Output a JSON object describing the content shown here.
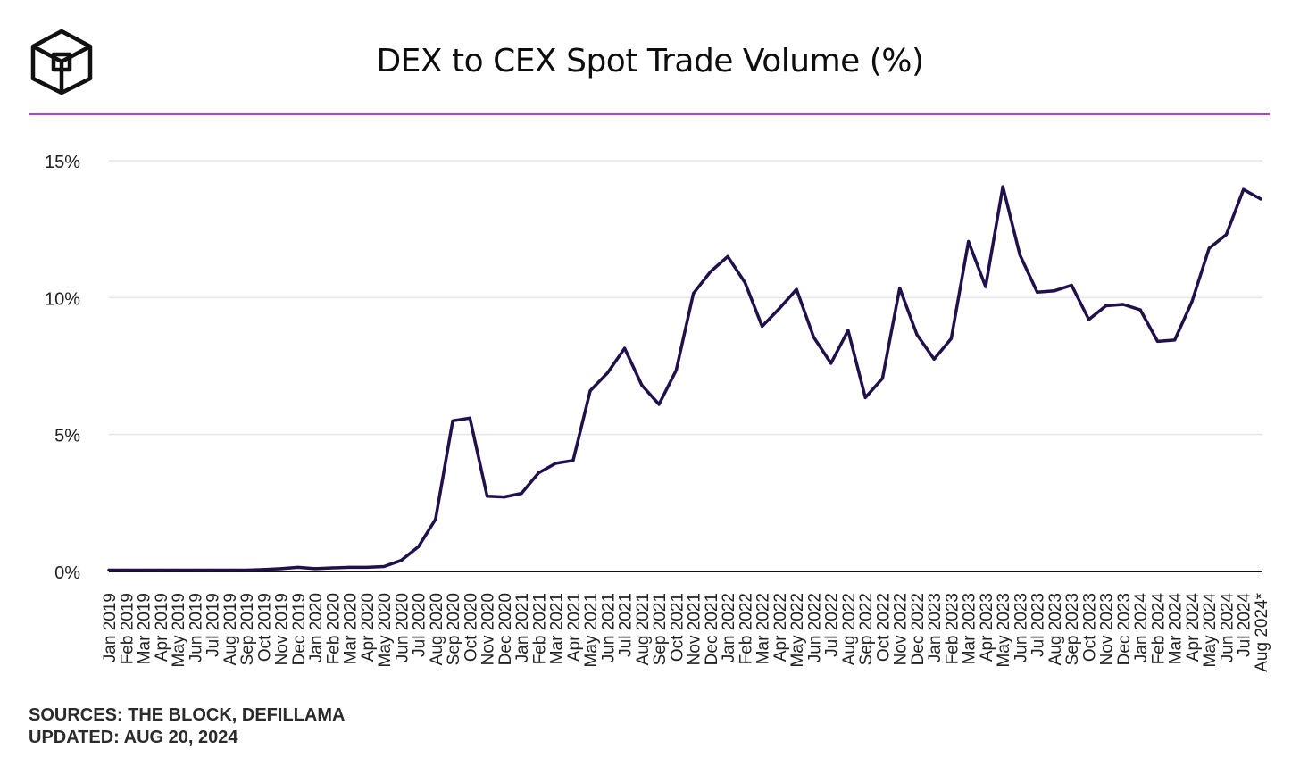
{
  "logo": {
    "icon": "the-block-cube-logo-icon"
  },
  "accent_color": "#b23ee0",
  "line_color": "#22104a",
  "chart_data": {
    "type": "line",
    "title": "DEX to CEX Spot Trade Volume (%)",
    "xlabel": "",
    "ylabel": "",
    "ylim": [
      0,
      15
    ],
    "y_ticks": [
      "0%",
      "5%",
      "10%",
      "15%"
    ],
    "y_tick_values": [
      0,
      5,
      10,
      15
    ],
    "grid": true,
    "legend": "none",
    "categories": [
      "Jan 2019",
      "Feb 2019",
      "Mar 2019",
      "Apr 2019",
      "May 2019",
      "Jun 2019",
      "Jul 2019",
      "Aug 2019",
      "Sep 2019",
      "Oct 2019",
      "Nov 2019",
      "Dec 2019",
      "Jan 2020",
      "Feb 2020",
      "Mar 2020",
      "Apr 2020",
      "May 2020",
      "Jun 2020",
      "Jul 2020",
      "Aug 2020",
      "Sep 2020",
      "Oct 2020",
      "Nov 2020",
      "Dec 2020",
      "Jan 2021",
      "Feb 2021",
      "Mar 2021",
      "Apr 2021",
      "May 2021",
      "Jun 2021",
      "Jul 2021",
      "Aug 2021",
      "Sep 2021",
      "Oct 2021",
      "Nov 2021",
      "Dec 2021",
      "Jan 2022",
      "Feb 2022",
      "Mar 2022",
      "Apr 2022",
      "May 2022",
      "Jun 2022",
      "Jul 2022",
      "Aug 2022",
      "Sep 2022",
      "Oct 2022",
      "Nov 2022",
      "Dec 2022",
      "Jan 2023",
      "Feb 2023",
      "Mar 2023",
      "Apr 2023",
      "May 2023",
      "Jun 2023",
      "Jul 2023",
      "Aug 2023",
      "Sep 2023",
      "Oct 2023",
      "Nov 2023",
      "Dec 2023",
      "Jan 2024",
      "Feb 2024",
      "Mar 2024",
      "Apr 2024",
      "May 2024",
      "Jun 2024",
      "Jul 2024",
      "Aug 2024*"
    ],
    "series": [
      {
        "values": [
          0.05,
          0.05,
          0.05,
          0.05,
          0.05,
          0.05,
          0.05,
          0.05,
          0.05,
          0.07,
          0.1,
          0.15,
          0.1,
          0.13,
          0.15,
          0.15,
          0.18,
          0.4,
          0.9,
          1.9,
          5.5,
          5.6,
          2.75,
          2.72,
          2.85,
          3.6,
          3.95,
          4.05,
          6.6,
          7.25,
          8.15,
          6.8,
          6.1,
          7.35,
          10.15,
          10.95,
          11.5,
          10.55,
          8.95,
          9.6,
          10.3,
          8.55,
          7.6,
          8.8,
          6.35,
          7.05,
          10.35,
          8.65,
          7.75,
          8.5,
          12.05,
          10.4,
          14.05,
          11.55,
          10.2,
          10.25,
          10.45,
          9.2,
          9.7,
          9.75,
          9.55,
          8.4,
          8.45,
          9.85,
          11.8,
          12.3,
          13.95,
          13.6
        ]
      }
    ]
  },
  "footer": {
    "sources": "SOURCES: THE BLOCK, DEFILLAMA",
    "updated": "UPDATED: AUG 20, 2024"
  }
}
